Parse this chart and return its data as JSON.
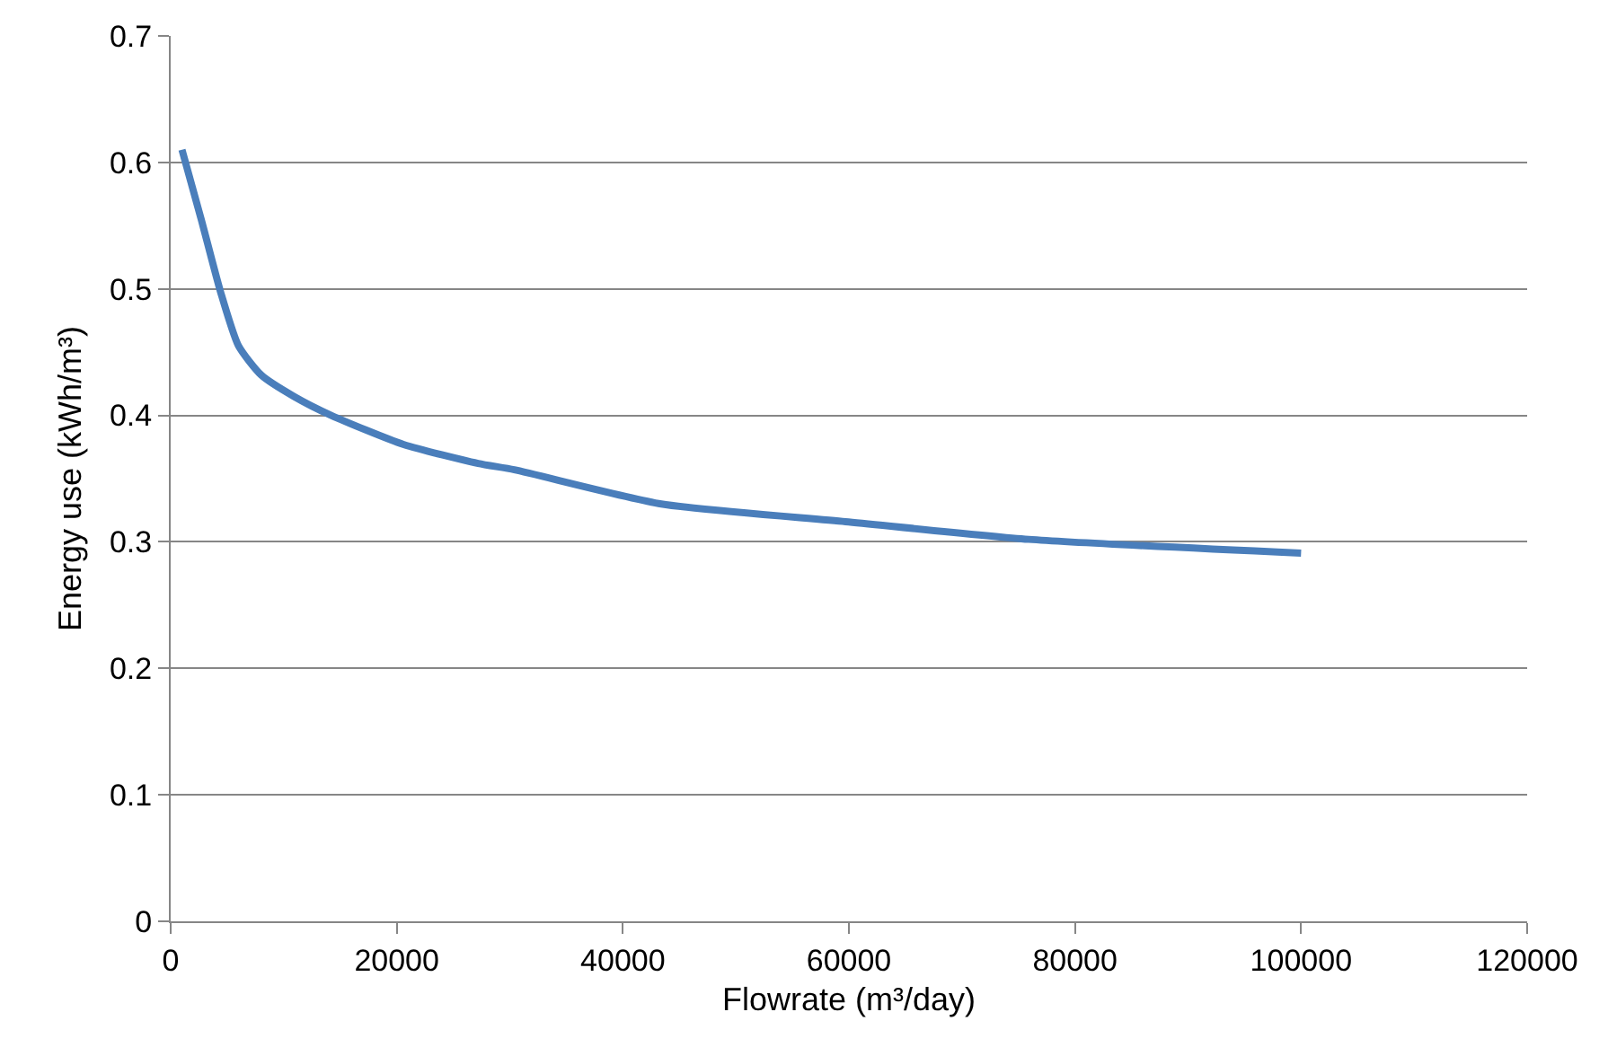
{
  "chart_data": {
    "type": "line",
    "xlabel": "Flowrate (m³/day)",
    "ylabel": "Energy use (kWh/m³)",
    "xlim": [
      0,
      120000
    ],
    "xticks": [
      0,
      20000,
      40000,
      60000,
      80000,
      100000,
      120000
    ],
    "ylim": [
      0,
      0.7
    ],
    "yticks": [
      0,
      0.1,
      0.2,
      0.3,
      0.4,
      0.5,
      0.6,
      0.7
    ],
    "grid": "y",
    "marker": "none",
    "line_style": "solid",
    "series": [
      {
        "color": "#4a7ebb",
        "x": [
          1000,
          2700,
          4400,
          6000,
          8000,
          10900,
          14200,
          20600,
          27200,
          30400,
          43400,
          59700,
          75900,
          100000
        ],
        "values": [
          0.61,
          0.555,
          0.498,
          0.455,
          0.432,
          0.415,
          0.4,
          0.377,
          0.362,
          0.357,
          0.33,
          0.316,
          0.302,
          0.291
        ]
      }
    ]
  }
}
